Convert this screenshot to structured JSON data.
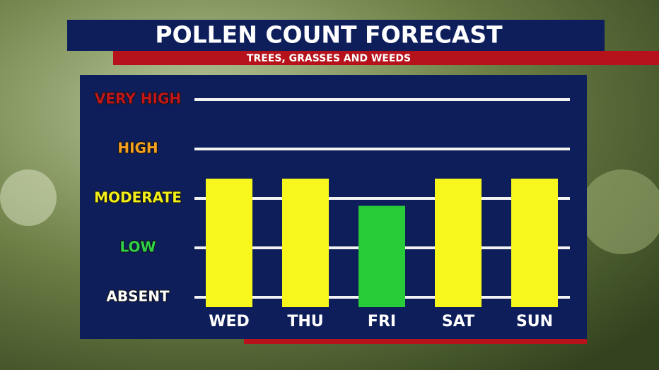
{
  "chart_data": {
    "type": "bar",
    "title": "POLLEN COUNT FORECAST",
    "subtitle": "TREES, GRASSES AND WEEDS",
    "categories": [
      "WED",
      "THU",
      "FRI",
      "SAT",
      "SUN"
    ],
    "values": [
      2.4,
      2.4,
      1.85,
      2.4,
      2.4
    ],
    "colors": [
      "#f7f71e",
      "#f7f71e",
      "#27cc38",
      "#f7f71e",
      "#f7f71e"
    ],
    "ylim": [
      -0.2,
      4
    ],
    "yticks": [
      {
        "value": 0,
        "label": "ABSENT"
      },
      {
        "value": 1,
        "label": "LOW"
      },
      {
        "value": 2,
        "label": "MODERATE"
      },
      {
        "value": 3,
        "label": "HIGH"
      },
      {
        "value": 4,
        "label": "VERY HIGH"
      }
    ],
    "ytick_colors": [
      "#ffffff",
      "#2fd14a",
      "#f2ee1a",
      "#f4a021",
      "#c0161c"
    ],
    "grid": true
  }
}
